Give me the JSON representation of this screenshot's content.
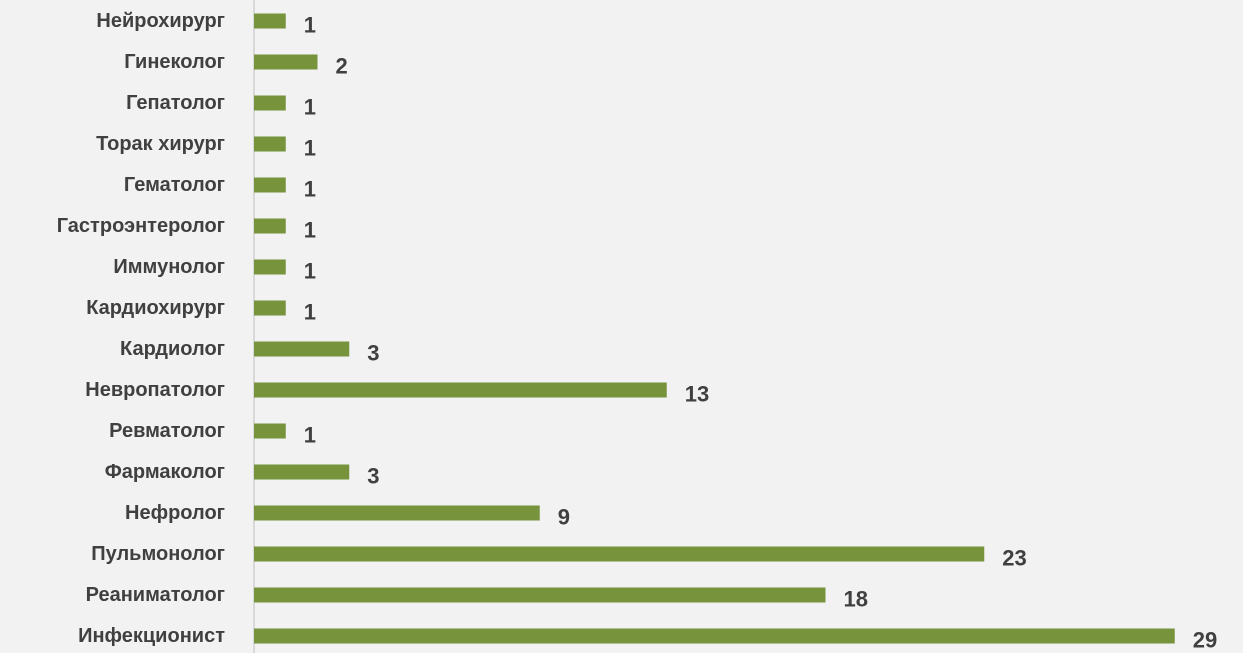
{
  "chart_data": {
    "type": "bar",
    "orientation": "horizontal",
    "categories": [
      "Нейрохирург",
      "Гинеколог",
      "Гепатолог",
      "Торак хирург",
      "Гематолог",
      "Гастроэнтеролог",
      "Иммунолог",
      "Кардиохирург",
      "Кардиолог",
      "Невропатолог",
      "Ревматолог",
      "Фармаколог",
      "Нефролог",
      "Пульмонолог",
      "Реаниматолог",
      "Инфекционист"
    ],
    "values": [
      1,
      2,
      1,
      1,
      1,
      1,
      1,
      1,
      3,
      13,
      1,
      3,
      9,
      23,
      18,
      29
    ],
    "title": "",
    "xlabel": "",
    "ylabel": "",
    "xlim": [
      0,
      29
    ],
    "grid": false,
    "legend": "none",
    "bar_color": "#77933c",
    "axis_color": "#bfbfbf",
    "text_color": "#404040",
    "background": "#f2f2f2"
  }
}
